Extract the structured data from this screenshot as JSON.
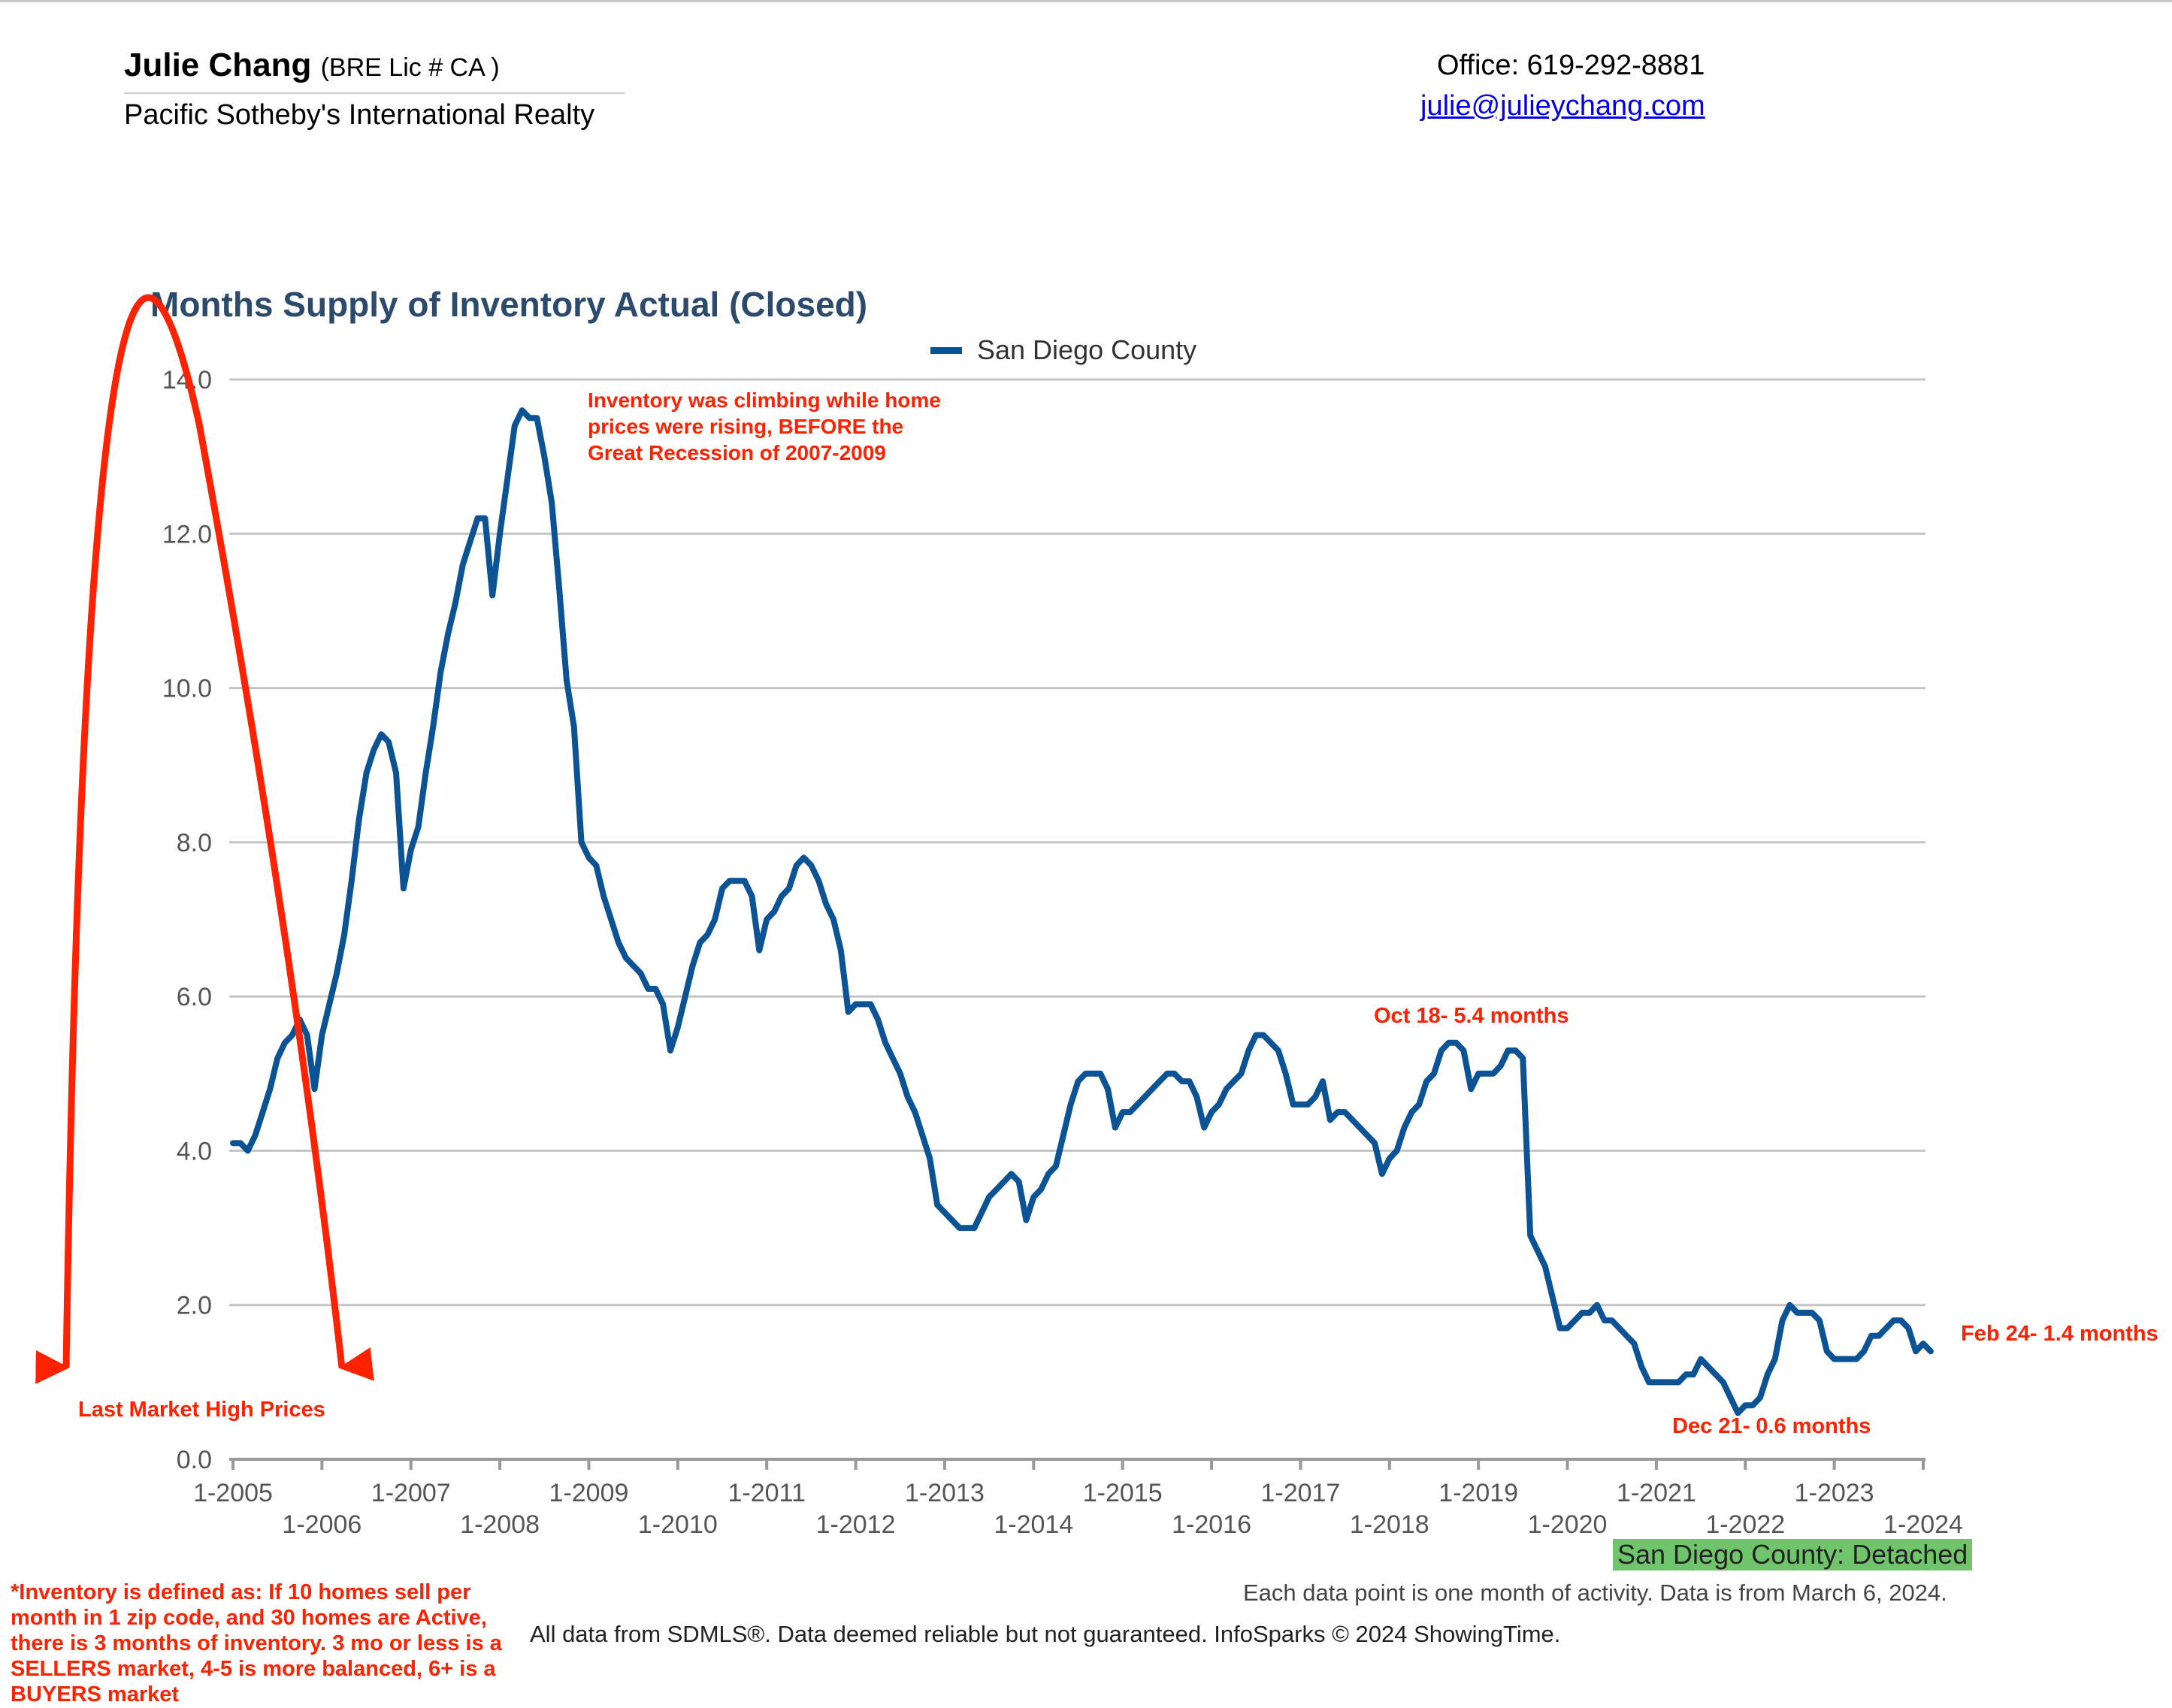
{
  "header": {
    "agent_name": "Julie Chang",
    "agent_license": "(BRE Lic # CA )",
    "agent_company": "Pacific Sotheby's International Realty",
    "office_phone": "Office: 619-292-8881",
    "email": "julie@julieychang.com"
  },
  "footer": {
    "region_badge": "San Diego County: Detached",
    "data_note": "Each data point is one month of activity. Data is from March 6, 2024.",
    "source_note": "All data from SDMLS®. Data deemed reliable but not guaranteed. InfoSparks © 2024 ShowingTime.",
    "definition_note": "*Inventory is defined as: If 10 homes sell per month in 1 zip code, and 30 homes are Active, there is 3 months of inventory. 3 mo or less is a SELLERS market, 4-5 is more balanced, 6+ is a BUYERS market"
  },
  "colors": {
    "series": "#0b5394",
    "annotation": "#ff2200",
    "title": "#2c4a6b",
    "badge": "#6fc46c",
    "grid": "#c4c4c4"
  },
  "chart_data": {
    "type": "line",
    "title": "Months Supply of Inventory Actual (Closed)",
    "xlabel": "",
    "ylabel": "",
    "ylim": [
      0,
      14
    ],
    "yticks": [
      "0.0",
      "2.0",
      "4.0",
      "6.0",
      "8.0",
      "10.0",
      "12.0",
      "14.0"
    ],
    "grid": true,
    "legend_position": "top-center",
    "x_start": "1-2005",
    "x_end": "2-2024",
    "xticks_upper": [
      "1-2005",
      "1-2007",
      "1-2009",
      "1-2011",
      "1-2013",
      "1-2015",
      "1-2017",
      "1-2019",
      "1-2021",
      "1-2023"
    ],
    "xticks_lower": [
      "1-2006",
      "1-2008",
      "1-2010",
      "1-2012",
      "1-2014",
      "1-2016",
      "1-2018",
      "1-2020",
      "1-2022",
      "1-2024"
    ],
    "series": [
      {
        "name": "San Diego County",
        "values": [
          4.1,
          4.1,
          4.0,
          4.2,
          4.5,
          4.8,
          5.2,
          5.4,
          5.5,
          5.7,
          5.5,
          4.8,
          5.5,
          5.9,
          6.3,
          6.8,
          7.5,
          8.3,
          8.9,
          9.2,
          9.4,
          9.3,
          8.9,
          7.4,
          7.9,
          8.2,
          8.9,
          9.5,
          10.2,
          10.7,
          11.1,
          11.6,
          11.9,
          12.2,
          12.2,
          11.2,
          12.0,
          12.7,
          13.4,
          13.6,
          13.5,
          13.5,
          13.0,
          12.4,
          11.3,
          10.1,
          9.5,
          8.0,
          7.8,
          7.7,
          7.3,
          7.0,
          6.7,
          6.5,
          6.4,
          6.3,
          6.1,
          6.1,
          5.9,
          5.3,
          5.6,
          6.0,
          6.4,
          6.7,
          6.8,
          7.0,
          7.4,
          7.5,
          7.5,
          7.5,
          7.3,
          6.6,
          7.0,
          7.1,
          7.3,
          7.4,
          7.7,
          7.8,
          7.7,
          7.5,
          7.2,
          7.0,
          6.6,
          5.8,
          5.9,
          5.9,
          5.9,
          5.7,
          5.4,
          5.2,
          5.0,
          4.7,
          4.5,
          4.2,
          3.9,
          3.3,
          3.2,
          3.1,
          3.0,
          3.0,
          3.0,
          3.2,
          3.4,
          3.5,
          3.6,
          3.7,
          3.6,
          3.1,
          3.4,
          3.5,
          3.7,
          3.8,
          4.2,
          4.6,
          4.9,
          5.0,
          5.0,
          5.0,
          4.8,
          4.3,
          4.5,
          4.5,
          4.6,
          4.7,
          4.8,
          4.9,
          5.0,
          5.0,
          4.9,
          4.9,
          4.7,
          4.3,
          4.5,
          4.6,
          4.8,
          4.9,
          5.0,
          5.3,
          5.5,
          5.5,
          5.4,
          5.3,
          5.0,
          4.6,
          4.6,
          4.6,
          4.7,
          4.9,
          4.4,
          4.5,
          4.5,
          4.4,
          4.3,
          4.2,
          4.1,
          3.7,
          3.9,
          4.0,
          4.3,
          4.5,
          4.6,
          4.9,
          5.0,
          5.3,
          5.4,
          5.4,
          5.3,
          4.8,
          5.0,
          5.0,
          5.0,
          5.1,
          5.3,
          5.3,
          5.2,
          2.9,
          2.7,
          2.5,
          2.1,
          1.7,
          1.7,
          1.8,
          1.9,
          1.9,
          2.0,
          1.8,
          1.8,
          1.7,
          1.6,
          1.5,
          1.2,
          1.0,
          1.0,
          1.0,
          1.0,
          1.0,
          1.1,
          1.1,
          1.3,
          1.2,
          1.1,
          1.0,
          0.8,
          0.6,
          0.7,
          0.7,
          0.8,
          1.1,
          1.3,
          1.8,
          2.0,
          1.9,
          1.9,
          1.9,
          1.8,
          1.4,
          1.3,
          1.3,
          1.3,
          1.3,
          1.4,
          1.6,
          1.6,
          1.7,
          1.8,
          1.8,
          1.7,
          1.4,
          1.5,
          1.4
        ]
      }
    ],
    "annotations": [
      {
        "text_lines": [
          "Inventory was climbing while home",
          "prices were rising, BEFORE the",
          "Great Recession of 2007-2009"
        ]
      },
      {
        "text_lines": [
          "Oct 18- 5.4 months"
        ]
      },
      {
        "text_lines": [
          "Feb 24- 1.4 months"
        ]
      },
      {
        "text_lines": [
          "Dec 21- 0.6 months"
        ]
      },
      {
        "text_lines": [
          "Last Market High Prices"
        ]
      }
    ]
  }
}
